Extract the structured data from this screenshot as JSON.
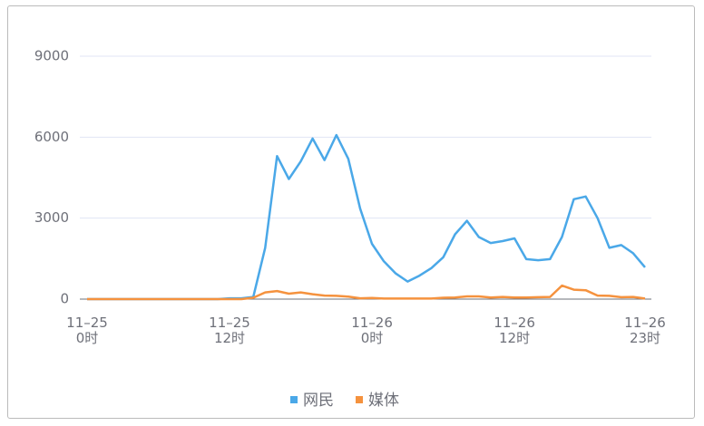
{
  "chart_data": {
    "type": "line",
    "categories": [
      "11–25\n0时",
      null,
      null,
      null,
      null,
      null,
      null,
      null,
      null,
      null,
      null,
      null,
      "11–25\n12时",
      null,
      null,
      null,
      null,
      null,
      null,
      null,
      null,
      null,
      null,
      null,
      "11–26\n0时",
      null,
      null,
      null,
      null,
      null,
      null,
      null,
      null,
      null,
      null,
      null,
      "11–26\n12时",
      null,
      null,
      null,
      null,
      null,
      null,
      null,
      null,
      null,
      null,
      "11–26\n23时"
    ],
    "series": [
      {
        "name": "网民",
        "color": "#4aa8e8",
        "values": [
          0,
          0,
          0,
          0,
          0,
          0,
          0,
          0,
          0,
          0,
          0,
          0,
          30,
          30,
          80,
          1900,
          5300,
          4450,
          5100,
          5950,
          5150,
          6080,
          5200,
          3350,
          2050,
          1400,
          950,
          650,
          870,
          1150,
          1550,
          2400,
          2900,
          2300,
          2080,
          2150,
          2250,
          1480,
          1440,
          1480,
          2300,
          3700,
          3800,
          3000,
          1900,
          2000,
          1700,
          1180
        ]
      },
      {
        "name": "媒体",
        "color": "#f5923e",
        "values": [
          0,
          0,
          0,
          0,
          0,
          0,
          0,
          0,
          0,
          0,
          0,
          0,
          0,
          0,
          50,
          250,
          300,
          200,
          250,
          180,
          130,
          120,
          90,
          30,
          40,
          20,
          20,
          20,
          20,
          20,
          50,
          60,
          100,
          100,
          60,
          80,
          60,
          60,
          70,
          80,
          500,
          350,
          330,
          130,
          120,
          70,
          80,
          20
        ]
      }
    ],
    "ylim": [
      0,
      9000
    ],
    "yticks": [
      0,
      3000,
      6000,
      9000
    ],
    "grid": true
  }
}
